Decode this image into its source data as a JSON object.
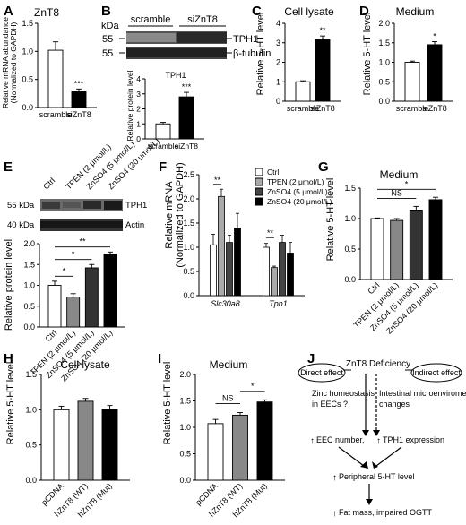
{
  "panels": {
    "A": {
      "letter": "A",
      "title": "ZnT8",
      "ylabel1": "Relative mRNA abundance",
      "ylabel2": "(Normalized to GAPDH)"
    },
    "B": {
      "letter": "B",
      "blot_kda": "kDa",
      "blot_left_labels": [
        "55",
        "55"
      ],
      "blot_right_labels": [
        "TPH1",
        "β-tubulin"
      ],
      "groups": [
        "scramble",
        "siZnT8"
      ],
      "chart_title": "TPH1",
      "ylabel": "Relative protein level"
    },
    "C": {
      "letter": "C",
      "title": "Cell lysate"
    },
    "D": {
      "letter": "D",
      "title": "Medium"
    },
    "E": {
      "letter": "E",
      "blot_left_labels": [
        "55 kDa",
        "40 kDa"
      ],
      "blot_right_labels": [
        "TPH1",
        "Actin"
      ],
      "lanes": [
        "Ctrl",
        "TPEN (2 μmol/L)",
        "ZnSO4 (5 μmol/L)",
        "ZnSO4 (20 μmol/L)"
      ],
      "ylabel": "Relative protein level"
    },
    "F": {
      "letter": "F",
      "ylabel1": "Relative mRNA",
      "ylabel2": "(Normalized to GAPDH)",
      "legend": [
        "Ctrl",
        "TPEN (2 μmol/L)",
        "ZnSO4 (5 μmol/L)",
        "ZnSO4 (20 μmol/L)"
      ]
    },
    "G": {
      "letter": "G",
      "title": "Medium"
    },
    "H": {
      "letter": "H",
      "title": "Cell lysate"
    },
    "I": {
      "letter": "I",
      "title": "Medium"
    },
    "J": {
      "letter": "J",
      "top": "ZnT8 Deficiency",
      "direct": "Direct effect",
      "indirect": "Indirect effect",
      "zinc1": "Zinc homeostasis",
      "zinc2": "in EECs ?",
      "micro1": "Intestinal microenviroment",
      "micro2": "changes",
      "eec": "EEC  number,",
      "tph1": "TPH1 expression",
      "peri": "Peripheral 5-HT level",
      "fat": "Fat mass, impaired OGTT"
    }
  },
  "chart_data": [
    {
      "panel": "A",
      "type": "bar",
      "categories": [
        "scramble",
        "siZnT8"
      ],
      "values": [
        1.02,
        0.28
      ],
      "errors": [
        0.15,
        0.05
      ],
      "colors": [
        "#ffffff",
        "#000000"
      ],
      "ylabel": "Relative mRNA abundance (Normalized to GAPDH)",
      "ylim": [
        0,
        1.5
      ],
      "yticks": [
        "0.0",
        "0.5",
        "1.0",
        "1.5"
      ],
      "annotations": [
        {
          "bar": 1,
          "text": "***"
        }
      ]
    },
    {
      "panel": "B",
      "type": "bar",
      "categories": [
        "scramble",
        "siZnT8"
      ],
      "values": [
        1.0,
        2.8
      ],
      "errors": [
        0.1,
        0.3
      ],
      "colors": [
        "#ffffff",
        "#000000"
      ],
      "ylabel": "Relative protein level",
      "ylim": [
        0,
        4
      ],
      "yticks": [
        "0",
        "1",
        "2",
        "3",
        "4"
      ],
      "annotations": [
        {
          "bar": 1,
          "text": "***"
        }
      ]
    },
    {
      "panel": "C",
      "type": "bar",
      "categories": [
        "scramble",
        "siZnT8"
      ],
      "values": [
        1.0,
        3.15
      ],
      "errors": [
        0.05,
        0.2
      ],
      "colors": [
        "#ffffff",
        "#000000"
      ],
      "ylabel": "Relative 5-HT level",
      "ylim": [
        0,
        4
      ],
      "yticks": [
        "0",
        "1",
        "2",
        "3",
        "4"
      ],
      "annotations": [
        {
          "bar": 1,
          "text": "**"
        }
      ]
    },
    {
      "panel": "D",
      "type": "bar",
      "categories": [
        "scramble",
        "siZnT8"
      ],
      "values": [
        1.0,
        1.45
      ],
      "errors": [
        0.03,
        0.08
      ],
      "colors": [
        "#ffffff",
        "#000000"
      ],
      "ylabel": "Relative 5-HT level",
      "ylim": [
        0,
        2.0
      ],
      "yticks": [
        "0.0",
        "0.5",
        "1.0",
        "1.5",
        "2.0"
      ],
      "annotations": [
        {
          "bar": 1,
          "text": "*"
        }
      ]
    },
    {
      "panel": "E",
      "type": "bar",
      "categories": [
        "Ctrl",
        "TPEN (2 μmol/L)",
        "ZnSO4 (5 μmol/L)",
        "ZnSO4 (20 μmol/L)"
      ],
      "values": [
        1.0,
        0.72,
        1.42,
        1.75
      ],
      "errors": [
        0.1,
        0.08,
        0.08,
        0.05
      ],
      "colors": [
        "#ffffff",
        "#888888",
        "#333333",
        "#000000"
      ],
      "ylabel": "Relative protein level",
      "ylim": [
        0,
        2.0
      ],
      "yticks": [
        "0.0",
        "0.5",
        "1.0",
        "1.5",
        "2.0"
      ],
      "brackets": [
        {
          "from": 0,
          "to": 1,
          "level": 1.22,
          "text": "*"
        },
        {
          "from": 0,
          "to": 2,
          "level": 1.62,
          "text": "*"
        },
        {
          "from": 0,
          "to": 3,
          "level": 1.92,
          "text": "**"
        }
      ]
    },
    {
      "panel": "F",
      "type": "bar",
      "categories": [
        "Slc30a8",
        "Tph1"
      ],
      "series": [
        {
          "name": "Ctrl",
          "values": [
            1.05,
            1.0
          ],
          "errors": [
            0.22,
            0.08
          ],
          "color": "#ffffff"
        },
        {
          "name": "TPEN (2 μmol/L)",
          "values": [
            2.05,
            0.58
          ],
          "errors": [
            0.15,
            0.03
          ],
          "color": "#aaaaaa"
        },
        {
          "name": "ZnSO4 (5 μmol/L)",
          "values": [
            1.1,
            1.1
          ],
          "errors": [
            0.15,
            0.15
          ],
          "color": "#444444"
        },
        {
          "name": "ZnSO4 (20 μmol/L)",
          "values": [
            1.4,
            0.88
          ],
          "errors": [
            0.3,
            0.22
          ],
          "color": "#000000"
        }
      ],
      "ylabel": "Relative mRNA (Normalized to GAPDH)",
      "ylim": [
        0,
        2.5
      ],
      "yticks": [
        "0.0",
        "0.5",
        "1.0",
        "1.5",
        "2.0",
        "2.5"
      ],
      "brackets": [
        {
          "category": 0,
          "from": 0,
          "to": 1,
          "level": 2.3,
          "text": "**"
        },
        {
          "category": 1,
          "from": 0,
          "to": 1,
          "level": 1.2,
          "text": "**"
        }
      ]
    },
    {
      "panel": "G",
      "type": "bar",
      "categories": [
        "Ctrl",
        "TPEN (2 μmol/L)",
        "ZnSO4 (5 μmol/L)",
        "ZnSO4 (20 μmol/L)"
      ],
      "values": [
        1.0,
        0.97,
        1.14,
        1.31
      ],
      "errors": [
        0.01,
        0.03,
        0.06,
        0.04
      ],
      "colors": [
        "#ffffff",
        "#888888",
        "#333333",
        "#000000"
      ],
      "ylabel": "Relative 5-HT level",
      "ylim": [
        0,
        1.5
      ],
      "yticks": [
        "0.0",
        "0.5",
        "1.0",
        "1.5"
      ],
      "brackets": [
        {
          "from": 0,
          "to": 2,
          "level": 1.33,
          "text": "NS"
        },
        {
          "from": 0,
          "to": 3,
          "level": 1.48,
          "text": "*"
        }
      ]
    },
    {
      "panel": "H",
      "type": "bar",
      "categories": [
        "pCDNA",
        "hZnT8 (WT)",
        "hZnT8 (Mut)"
      ],
      "values": [
        1.0,
        1.12,
        1.01
      ],
      "errors": [
        0.05,
        0.04,
        0.05
      ],
      "colors": [
        "#ffffff",
        "#888888",
        "#000000"
      ],
      "ylabel": "Relative 5-HT level",
      "ylim": [
        0,
        1.5
      ],
      "yticks": [
        "0.0",
        "0.5",
        "1.0",
        "1.5"
      ]
    },
    {
      "panel": "I",
      "type": "bar",
      "categories": [
        "pCDNA",
        "hZnT8 (WT)",
        "hZnT8 (Mut)"
      ],
      "values": [
        1.07,
        1.23,
        1.48
      ],
      "errors": [
        0.08,
        0.05,
        0.04
      ],
      "colors": [
        "#ffffff",
        "#888888",
        "#000000"
      ],
      "ylabel": "Relative 5-HT level",
      "ylim": [
        0,
        2.0
      ],
      "yticks": [
        "0.0",
        "0.5",
        "1.0",
        "1.5",
        "2.0"
      ],
      "brackets": [
        {
          "from": 0,
          "to": 1,
          "level": 1.45,
          "text": "NS"
        },
        {
          "from": 1,
          "to": 2,
          "level": 1.68,
          "text": "*"
        }
      ]
    }
  ]
}
